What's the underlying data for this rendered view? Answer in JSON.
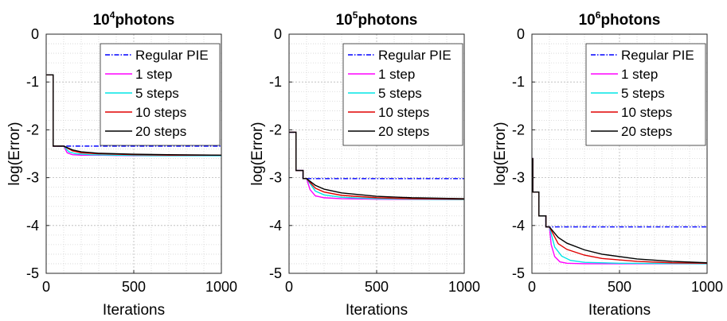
{
  "chart_data": [
    {
      "type": "line",
      "title_base": "10",
      "title_exp": "4",
      "title_suffix": "photons",
      "xlabel": "Iterations",
      "ylabel": "log(Error)",
      "xlim": [
        0,
        1000
      ],
      "ylim": [
        -5,
        0
      ],
      "xticks": [
        "0",
        "500",
        "1000"
      ],
      "yticks": [
        "0",
        "-1",
        "-2",
        "-3",
        "-4",
        "-5"
      ],
      "grid": true,
      "legend_position": "top-right",
      "series": [
        {
          "name": "Regular PIE",
          "color": "#0000ff",
          "style": "dash-dot",
          "x": [
            0,
            40,
            40,
            1000
          ],
          "y": [
            -0.85,
            -0.85,
            -2.34,
            -2.34
          ]
        },
        {
          "name": "1 step",
          "color": "#ff00ff",
          "style": "solid",
          "x": [
            0,
            40,
            40,
            100,
            120,
            150,
            200,
            300,
            500,
            700,
            1000
          ],
          "y": [
            -0.85,
            -0.85,
            -2.34,
            -2.34,
            -2.48,
            -2.52,
            -2.53,
            -2.53,
            -2.54,
            -2.54,
            -2.54
          ]
        },
        {
          "name": "5 steps",
          "color": "#00e5e5",
          "style": "solid",
          "x": [
            0,
            40,
            40,
            100,
            130,
            170,
            250,
            400,
            600,
            1000
          ],
          "y": [
            -0.85,
            -0.85,
            -2.34,
            -2.34,
            -2.46,
            -2.5,
            -2.52,
            -2.53,
            -2.54,
            -2.54
          ]
        },
        {
          "name": "10 steps",
          "color": "#e00000",
          "style": "solid",
          "x": [
            0,
            40,
            40,
            100,
            150,
            200,
            300,
            500,
            700,
            1000
          ],
          "y": [
            -0.85,
            -0.85,
            -2.34,
            -2.34,
            -2.44,
            -2.48,
            -2.5,
            -2.52,
            -2.53,
            -2.53
          ]
        },
        {
          "name": "20 steps",
          "color": "#000000",
          "style": "solid",
          "x": [
            0,
            40,
            40,
            100,
            150,
            200,
            300,
            500,
            700,
            1000
          ],
          "y": [
            -0.85,
            -0.85,
            -2.34,
            -2.34,
            -2.42,
            -2.46,
            -2.49,
            -2.51,
            -2.52,
            -2.53
          ]
        }
      ]
    },
    {
      "type": "line",
      "title_base": "10",
      "title_exp": "5",
      "title_suffix": "photons",
      "xlabel": "Iterations",
      "ylabel": "log(Error)",
      "xlim": [
        0,
        1000
      ],
      "ylim": [
        -5,
        0
      ],
      "xticks": [
        "0",
        "500",
        "1000"
      ],
      "yticks": [
        "0",
        "-1",
        "-2",
        "-3",
        "-4",
        "-5"
      ],
      "grid": true,
      "legend_position": "top-right",
      "series": [
        {
          "name": "Regular PIE",
          "color": "#0000ff",
          "style": "dash-dot",
          "x": [
            0,
            40,
            40,
            80,
            80,
            1000
          ],
          "y": [
            -2.05,
            -2.05,
            -2.85,
            -2.85,
            -3.02,
            -3.02
          ]
        },
        {
          "name": "1 step",
          "color": "#ff00ff",
          "style": "solid",
          "x": [
            0,
            40,
            40,
            80,
            80,
            100,
            120,
            150,
            200,
            300,
            500,
            1000
          ],
          "y": [
            -2.05,
            -2.05,
            -2.85,
            -2.85,
            -3.02,
            -3.02,
            -3.25,
            -3.38,
            -3.42,
            -3.44,
            -3.45,
            -3.46
          ]
        },
        {
          "name": "5 steps",
          "color": "#00e5e5",
          "style": "solid",
          "x": [
            0,
            40,
            40,
            80,
            80,
            100,
            150,
            200,
            300,
            500,
            700,
            1000
          ],
          "y": [
            -2.05,
            -2.05,
            -2.85,
            -2.85,
            -3.02,
            -3.02,
            -3.28,
            -3.36,
            -3.41,
            -3.44,
            -3.45,
            -3.46
          ]
        },
        {
          "name": "10 steps",
          "color": "#e00000",
          "style": "solid",
          "x": [
            0,
            40,
            40,
            80,
            80,
            100,
            150,
            200,
            300,
            500,
            700,
            1000
          ],
          "y": [
            -2.05,
            -2.05,
            -2.85,
            -2.85,
            -3.02,
            -3.02,
            -3.22,
            -3.3,
            -3.37,
            -3.42,
            -3.44,
            -3.45
          ]
        },
        {
          "name": "20 steps",
          "color": "#000000",
          "style": "solid",
          "x": [
            0,
            40,
            40,
            80,
            80,
            100,
            150,
            200,
            300,
            500,
            700,
            1000
          ],
          "y": [
            -2.05,
            -2.05,
            -2.85,
            -2.85,
            -3.02,
            -3.02,
            -3.16,
            -3.24,
            -3.32,
            -3.39,
            -3.42,
            -3.44
          ]
        }
      ]
    },
    {
      "type": "line",
      "title_base": "10",
      "title_exp": "6",
      "title_suffix": "photons",
      "xlabel": "Iterations",
      "ylabel": "log(Error)",
      "xlim": [
        0,
        1000
      ],
      "ylim": [
        -5,
        0
      ],
      "xticks": [
        "0",
        "500",
        "1000"
      ],
      "yticks": [
        "0",
        "-1",
        "-2",
        "-3",
        "-4",
        "-5"
      ],
      "grid": true,
      "legend_position": "top-right",
      "series": [
        {
          "name": "Regular PIE",
          "color": "#0000ff",
          "style": "dash-dot",
          "x": [
            0,
            5,
            5,
            40,
            40,
            80,
            80,
            1000
          ],
          "y": [
            -2.6,
            -2.6,
            -3.3,
            -3.3,
            -3.8,
            -3.8,
            -4.03,
            -4.03
          ]
        },
        {
          "name": "1 step",
          "color": "#ff00ff",
          "style": "solid",
          "x": [
            0,
            5,
            5,
            40,
            40,
            80,
            80,
            100,
            110,
            130,
            160,
            200,
            300,
            500,
            1000
          ],
          "y": [
            -2.6,
            -2.6,
            -3.3,
            -3.3,
            -3.8,
            -3.8,
            -4.03,
            -4.03,
            -4.4,
            -4.65,
            -4.76,
            -4.79,
            -4.8,
            -4.8,
            -4.8
          ]
        },
        {
          "name": "5 steps",
          "color": "#00e5e5",
          "style": "solid",
          "x": [
            0,
            5,
            5,
            40,
            40,
            80,
            80,
            100,
            130,
            170,
            220,
            300,
            500,
            1000
          ],
          "y": [
            -2.6,
            -2.6,
            -3.3,
            -3.3,
            -3.8,
            -3.8,
            -4.03,
            -4.03,
            -4.45,
            -4.64,
            -4.73,
            -4.77,
            -4.79,
            -4.8
          ]
        },
        {
          "name": "10 steps",
          "color": "#e00000",
          "style": "solid",
          "x": [
            0,
            5,
            5,
            40,
            40,
            80,
            80,
            100,
            150,
            200,
            300,
            400,
            600,
            800,
            1000
          ],
          "y": [
            -2.6,
            -2.6,
            -3.3,
            -3.3,
            -3.8,
            -3.8,
            -4.03,
            -4.03,
            -4.38,
            -4.5,
            -4.62,
            -4.69,
            -4.75,
            -4.78,
            -4.79
          ]
        },
        {
          "name": "20 steps",
          "color": "#000000",
          "style": "solid",
          "x": [
            0,
            5,
            5,
            40,
            40,
            80,
            80,
            100,
            150,
            200,
            300,
            400,
            600,
            800,
            1000
          ],
          "y": [
            -2.6,
            -2.6,
            -3.3,
            -3.3,
            -3.8,
            -3.8,
            -4.03,
            -4.03,
            -4.25,
            -4.37,
            -4.51,
            -4.6,
            -4.7,
            -4.75,
            -4.78
          ]
        }
      ]
    }
  ]
}
